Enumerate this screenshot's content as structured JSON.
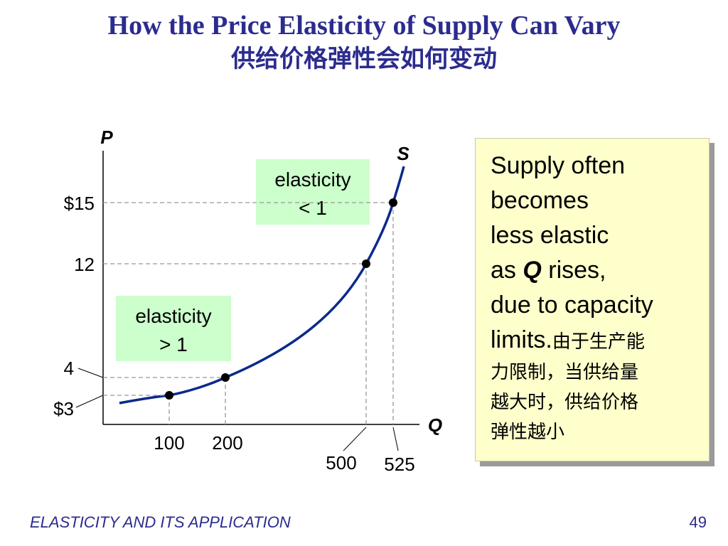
{
  "title": "How the Price Elasticity of Supply Can Vary",
  "subtitle": "供给价格弹性会如何变动",
  "note": {
    "line1": "Supply often",
    "line2": "becomes",
    "line3": "less elastic",
    "line4a": "as ",
    "line4q": "Q",
    "line4b": " rises,",
    "line5": "due to capacity",
    "line6": "limits.",
    "cn1": "由于生产能",
    "cn2": "力限制，当供给量",
    "cn3": "越大时，供给价格",
    "cn4": "弹性越小"
  },
  "footer": "ELASTICITY AND ITS APPLICATION",
  "page_number": "49",
  "chart_data": {
    "type": "line",
    "ylabel": "P",
    "xlabel": "Q",
    "curve_label": "S",
    "points": [
      {
        "x": 100,
        "y": 3,
        "x_label": "100",
        "y_label": "$3"
      },
      {
        "x": 200,
        "y": 4,
        "x_label": "200",
        "y_label": "4"
      },
      {
        "x": 500,
        "y": 12,
        "x_label": "500",
        "y_label": "12"
      },
      {
        "x": 525,
        "y": 15,
        "x_label": "525",
        "y_label": "$15"
      }
    ],
    "annotations": [
      {
        "line1": "elasticity",
        "line2": "> 1",
        "color": "#ccffcc"
      },
      {
        "line1": "elasticity",
        "line2": "< 1",
        "color": "#ccffcc"
      }
    ],
    "colors": {
      "curve": "#0a2a8c",
      "guides": "#999999",
      "axis": "#000000"
    }
  }
}
